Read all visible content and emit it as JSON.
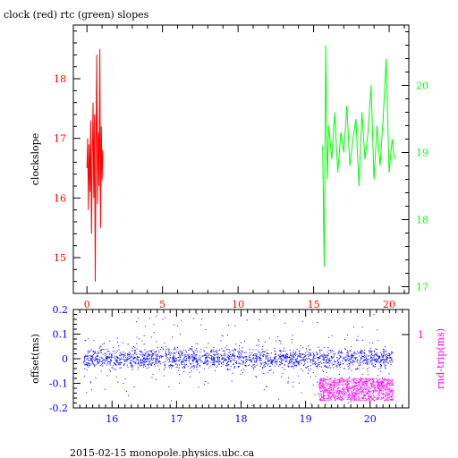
{
  "header": {
    "title": "clock (red) rtc (green) slopes"
  },
  "footer": {
    "caption": "2015-02-15  monopole.physics.ubc.ca"
  },
  "colors": {
    "clock": "#ff0000",
    "rtc": "#00ff00",
    "offset": "#0000ff",
    "roundtrip": "#ff00ff",
    "axis": "#000000"
  },
  "chart_data": [
    {
      "type": "line",
      "title": "clock (red) rtc (green) slopes",
      "ylabel": "clockslope",
      "xlim": [
        -0.9,
        21.3
      ],
      "ylim": [
        14.4,
        18.9
      ],
      "y2lim": [
        16.9,
        20.9
      ],
      "xticks": [
        0,
        5,
        10,
        15,
        20
      ],
      "yticks": [
        15,
        16,
        17,
        18
      ],
      "y2ticks": [
        17,
        18,
        19,
        20
      ],
      "series": [
        {
          "color": "clock",
          "axis": "left",
          "x": [
            0.0,
            0.05,
            0.1,
            0.15,
            0.2,
            0.25,
            0.3,
            0.35,
            0.4,
            0.45,
            0.5,
            0.55,
            0.6,
            0.65,
            0.7,
            0.75,
            0.8,
            0.85,
            0.9,
            0.95,
            1.0,
            1.05
          ],
          "y": [
            16.5,
            17.0,
            15.8,
            16.9,
            16.1,
            17.3,
            15.4,
            16.7,
            17.6,
            16.0,
            17.4,
            14.6,
            16.8,
            18.4,
            15.9,
            17.1,
            16.2,
            18.5,
            15.5,
            17.2,
            16.3,
            16.8
          ]
        },
        {
          "color": "rtc",
          "axis": "right",
          "x": [
            15.6,
            15.7,
            15.8,
            15.9,
            16.0,
            16.2,
            16.4,
            16.6,
            16.8,
            17.0,
            17.2,
            17.4,
            17.6,
            17.8,
            18.0,
            18.2,
            18.4,
            18.6,
            18.8,
            19.0,
            19.2,
            19.4,
            19.6,
            19.8,
            20.0,
            20.2,
            20.35
          ],
          "y": [
            19.1,
            17.3,
            20.6,
            18.6,
            19.4,
            18.9,
            19.6,
            18.7,
            19.3,
            19.0,
            19.7,
            18.8,
            19.2,
            19.5,
            18.5,
            19.6,
            18.9,
            19.3,
            20.0,
            18.6,
            19.4,
            18.8,
            19.5,
            20.4,
            18.7,
            19.2,
            18.9
          ]
        }
      ]
    },
    {
      "type": "scatter",
      "ylabel": "offset(ms)",
      "y2label": "rnd-trip(ms)",
      "xlim": [
        15.4,
        20.6
      ],
      "ylim": [
        -0.2,
        0.2
      ],
      "xticks": [
        16,
        17,
        18,
        19,
        20
      ],
      "yticks": [
        -0.2,
        -0.1,
        0,
        0.1,
        0.2
      ],
      "y2ticks": [
        1
      ],
      "series": [
        {
          "color": "offset",
          "axis": "left",
          "x_range": [
            15.55,
            20.35
          ],
          "typical": 0.0,
          "spread": 0.04,
          "spike_max": 0.2
        },
        {
          "color": "roundtrip",
          "axis": "right",
          "x_range": [
            19.2,
            20.35
          ],
          "y_range": [
            -0.17,
            -0.08
          ]
        }
      ]
    }
  ]
}
